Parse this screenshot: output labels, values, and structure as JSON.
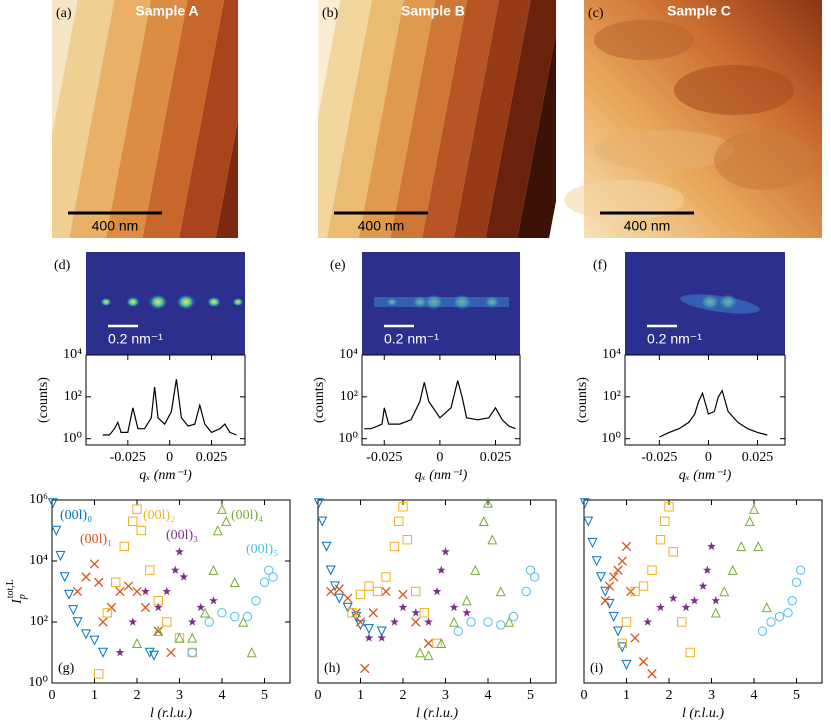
{
  "images": [
    {
      "label": "(a)",
      "title": "Sample A",
      "scale_bar": "400 nm"
    },
    {
      "label": "(b)",
      "title": "Sample B",
      "scale_bar": "400 nm"
    },
    {
      "label": "(c)",
      "title": "Sample C",
      "scale_bar": "400 nm"
    }
  ],
  "chart_data": [
    {
      "type": "line",
      "image_label": "(d)",
      "scale_bar": "0.2 nm⁻¹",
      "color": "#000000",
      "x": [
        -0.04,
        -0.036,
        -0.033,
        -0.031,
        -0.029,
        -0.025,
        -0.022,
        -0.019,
        -0.015,
        -0.011,
        -0.009,
        -0.007,
        -0.003,
        0.001,
        0.004,
        0.007,
        0.011,
        0.015,
        0.018,
        0.021,
        0.025,
        0.03,
        0.033,
        0.036,
        0.04
      ],
      "values": [
        1.5,
        1.5,
        3,
        6,
        2,
        2,
        30,
        3,
        3,
        10,
        300,
        10,
        5,
        20,
        700,
        10,
        4,
        5,
        40,
        5,
        2,
        3,
        5,
        2,
        1.5
      ],
      "log_y": true,
      "xlim": [
        -0.05,
        0.045
      ],
      "xticks": [
        -0.025,
        0,
        0.025
      ],
      "ylim": [
        0.5,
        10000
      ],
      "yticks": [
        {
          "value": 1,
          "label": "10⁰"
        },
        {
          "value": 100,
          "label": "10²"
        },
        {
          "value": 10000,
          "label": "10⁴"
        }
      ],
      "xlabel": "qₓ (nm⁻¹)",
      "ylabel": "(counts)"
    },
    {
      "type": "line",
      "image_label": "(e)",
      "scale_bar": "0.2 nm⁻¹",
      "color": "#000000",
      "x": [
        -0.034,
        -0.031,
        -0.028,
        -0.026,
        -0.025,
        -0.023,
        -0.018,
        -0.013,
        -0.009,
        -0.007,
        -0.005,
        0,
        0.005,
        0.008,
        0.01,
        0.012,
        0.017,
        0.022,
        0.025,
        0.028,
        0.031,
        0.034
      ],
      "values": [
        3,
        3,
        4,
        5,
        30,
        5,
        5,
        8,
        60,
        500,
        60,
        10,
        30,
        600,
        100,
        10,
        8,
        10,
        30,
        8,
        4,
        3
      ],
      "log_y": true,
      "xlim": [
        -0.035,
        0.036
      ],
      "xticks": [
        -0.025,
        0,
        0.025
      ],
      "ylim": [
        0.5,
        10000
      ],
      "yticks": [
        {
          "value": 1,
          "label": "10⁰"
        },
        {
          "value": 100,
          "label": "10²"
        },
        {
          "value": 10000,
          "label": "10⁴"
        }
      ],
      "xlabel": "qₓ (nm⁻¹)",
      "ylabel": "(counts)"
    },
    {
      "type": "line",
      "image_label": "(f)",
      "scale_bar": "0.2 nm⁻¹",
      "color": "#000000",
      "x": [
        -0.025,
        -0.02,
        -0.015,
        -0.01,
        -0.007,
        -0.005,
        -0.003,
        0,
        0.003,
        0.005,
        0.007,
        0.01,
        0.015,
        0.02,
        0.025,
        0.03
      ],
      "values": [
        1.2,
        2,
        3,
        6,
        15,
        60,
        150,
        15,
        20,
        100,
        200,
        20,
        6,
        3,
        2,
        1.5
      ],
      "log_y": true,
      "xlim": [
        -0.0425,
        0.039
      ],
      "xticks": [
        -0.025,
        0,
        0.025
      ],
      "ylim": [
        0.5,
        10000
      ],
      "yticks": [
        {
          "value": 1,
          "label": "10⁰"
        },
        {
          "value": 100,
          "label": "10²"
        },
        {
          "value": 10000,
          "label": "10⁴"
        }
      ],
      "xlabel": "qₓ (nm⁻¹)",
      "ylabel": "(counts)"
    },
    {
      "type": "scatter",
      "panel_label": "(g)",
      "log_y": true,
      "xlim": [
        0,
        5.6
      ],
      "xticks": [
        0,
        1,
        2,
        3,
        4,
        5
      ],
      "ylim": [
        1,
        1000000
      ],
      "yticks": [
        {
          "value": 1,
          "label": "10⁰"
        },
        {
          "value": 100,
          "label": "10²"
        },
        {
          "value": 10000,
          "label": "10⁴"
        },
        {
          "value": 1000000,
          "label": "10⁶"
        }
      ],
      "xlabel": "l (r.l.u.)",
      "ylabel": {
        "base": "I",
        "sub": "p",
        "sup": "tot,L"
      },
      "series": [
        {
          "name": "(00l)₀",
          "color": "#0072bd",
          "marker": "triangle-down",
          "x": [
            0.02,
            0.1,
            0.2,
            0.3,
            0.4,
            0.5,
            0.6,
            0.8,
            1.0,
            1.2,
            2.3,
            2.4
          ],
          "values": [
            800000,
            100000,
            15000,
            3000,
            800,
            250,
            100,
            40,
            25,
            10,
            10,
            8
          ]
        },
        {
          "name": "(00l)₁",
          "color": "#d95319",
          "marker": "x",
          "x": [
            0.6,
            0.8,
            1.0,
            1.1,
            1.2,
            1.4,
            1.6,
            1.8,
            2.0,
            2.2,
            2.5,
            2.8
          ],
          "values": [
            1000,
            3000,
            8000,
            2000,
            100,
            300,
            1000,
            1500,
            1000,
            300,
            50,
            10
          ]
        },
        {
          "name": "(00l)₂",
          "color": "#edb120",
          "marker": "square",
          "x": [
            1.1,
            1.3,
            1.5,
            1.7,
            1.9,
            2.0,
            2.1,
            2.3,
            2.5,
            2.7,
            3.0,
            3.3
          ],
          "values": [
            2,
            200,
            2000,
            30000,
            200000,
            500000,
            100000,
            5000,
            500,
            100,
            30,
            10
          ]
        },
        {
          "name": "(00l)₃",
          "color": "#7e2f8e",
          "marker": "star",
          "x": [
            1.6,
            1.9,
            2.2,
            2.5,
            2.7,
            2.9,
            3.0,
            3.1,
            3.3,
            3.5,
            3.8
          ],
          "values": [
            10,
            100,
            1000,
            300,
            1000,
            5000,
            20000,
            3000,
            100,
            300,
            500
          ]
        },
        {
          "name": "(00l)₄",
          "color": "#77ac30",
          "marker": "triangle-up",
          "x": [
            2.0,
            2.5,
            3.0,
            3.3,
            3.6,
            3.8,
            3.9,
            4.0,
            4.1,
            4.3,
            4.5,
            4.7
          ],
          "values": [
            20,
            50,
            30,
            30,
            200,
            5000,
            100000,
            500000,
            200000,
            2000,
            100,
            10
          ]
        },
        {
          "name": "(00l)₅",
          "color": "#4dbeee",
          "marker": "circle",
          "x": [
            3.3,
            3.7,
            4.0,
            4.3,
            4.6,
            4.8,
            5.0,
            5.1,
            5.2
          ],
          "values": [
            10,
            100,
            200,
            150,
            150,
            500,
            2000,
            5000,
            3000
          ]
        }
      ]
    },
    {
      "type": "scatter",
      "panel_label": "(h)",
      "log_y": true,
      "xlim": [
        0,
        5.6
      ],
      "xticks": [
        0,
        1,
        2,
        3,
        4,
        5
      ],
      "ylim": [
        1,
        1000000
      ],
      "xlabel": "l (r.l.u.)",
      "series": [
        {
          "color": "#0072bd",
          "marker": "triangle-down",
          "x": [
            0.02,
            0.1,
            0.2,
            0.3,
            0.4,
            0.5,
            0.7,
            0.9,
            1.0,
            1.2,
            1.5
          ],
          "values": [
            800000,
            200000,
            30000,
            5000,
            1500,
            600,
            300,
            150,
            80,
            60,
            50
          ]
        },
        {
          "color": "#d95319",
          "marker": "x",
          "x": [
            0.3,
            0.5,
            0.7,
            0.9,
            1.0,
            1.1,
            1.3,
            1.6,
            2.0,
            2.3,
            2.6
          ],
          "values": [
            1000,
            1200,
            600,
            200,
            100,
            3,
            200,
            1000,
            800,
            100,
            20
          ]
        },
        {
          "color": "#edb120",
          "marker": "square",
          "x": [
            0.8,
            1.0,
            1.2,
            1.4,
            1.6,
            1.8,
            1.9,
            2.0,
            2.1,
            2.3,
            2.5,
            2.8
          ],
          "values": [
            200,
            800,
            1500,
            1000,
            3000,
            30000,
            200000,
            600000,
            50000,
            1000,
            200,
            20
          ]
        },
        {
          "color": "#7e2f8e",
          "marker": "star",
          "x": [
            1.2,
            1.5,
            1.8,
            2.0,
            2.3,
            2.6,
            2.8,
            2.9,
            3.0,
            3.2,
            3.5
          ],
          "values": [
            30,
            30,
            100,
            300,
            200,
            100,
            1000,
            5000,
            20000,
            300,
            200
          ]
        },
        {
          "color": "#77ac30",
          "marker": "triangle-up",
          "x": [
            2.4,
            2.6,
            2.9,
            3.2,
            3.5,
            3.7,
            3.9,
            4.0,
            4.1,
            4.3,
            4.5
          ],
          "values": [
            10,
            8,
            20,
            100,
            500,
            5000,
            200000,
            800000,
            50000,
            1000,
            100
          ]
        },
        {
          "color": "#4dbeee",
          "marker": "circle",
          "x": [
            3.3,
            3.6,
            4.0,
            4.3,
            4.6,
            4.9,
            5.0,
            5.1
          ],
          "values": [
            50,
            100,
            100,
            80,
            150,
            1000,
            5000,
            3000
          ]
        }
      ]
    },
    {
      "type": "scatter",
      "panel_label": "(i)",
      "log_y": true,
      "xlim": [
        0,
        5.6
      ],
      "xticks": [
        0,
        1,
        2,
        3,
        4,
        5
      ],
      "ylim": [
        1,
        1000000
      ],
      "xlabel": "l (r.l.u.)",
      "series": [
        {
          "color": "#0072bd",
          "marker": "triangle-down",
          "x": [
            0.02,
            0.1,
            0.2,
            0.3,
            0.4,
            0.5,
            0.6,
            0.7,
            0.8,
            0.9,
            1.0
          ],
          "values": [
            800000,
            200000,
            40000,
            10000,
            3000,
            1000,
            400,
            150,
            50,
            15,
            4
          ]
        },
        {
          "color": "#d95319",
          "marker": "x",
          "x": [
            0.5,
            0.6,
            0.7,
            0.8,
            0.9,
            1.0,
            1.1,
            1.2,
            1.4,
            1.6
          ],
          "values": [
            500,
            1500,
            3000,
            5000,
            10000,
            30000,
            1000,
            30,
            5,
            2
          ]
        },
        {
          "color": "#edb120",
          "marker": "square",
          "x": [
            0.9,
            1.0,
            1.2,
            1.4,
            1.6,
            1.8,
            1.9,
            2.0,
            2.1,
            2.3,
            2.5
          ],
          "values": [
            20,
            100,
            1000,
            1500,
            5000,
            50000,
            200000,
            600000,
            20000,
            100,
            10
          ]
        },
        {
          "color": "#7e2f8e",
          "marker": "star",
          "x": [
            1.5,
            1.8,
            2.1,
            2.4,
            2.6,
            2.8,
            2.9,
            3.0,
            3.1
          ],
          "values": [
            100,
            300,
            600,
            300,
            500,
            1500,
            5000,
            30000,
            500
          ]
        },
        {
          "color": "#77ac30",
          "marker": "triangle-up",
          "x": [
            3.1,
            3.3,
            3.5,
            3.7,
            3.9,
            4.0,
            4.1,
            4.3
          ],
          "values": [
            200,
            1000,
            5000,
            30000,
            200000,
            500000,
            30000,
            300
          ]
        },
        {
          "color": "#4dbeee",
          "marker": "circle",
          "x": [
            4.2,
            4.4,
            4.6,
            4.8,
            4.9,
            5.0,
            5.1
          ],
          "values": [
            50,
            100,
            150,
            200,
            500,
            2000,
            5000
          ]
        }
      ]
    }
  ]
}
